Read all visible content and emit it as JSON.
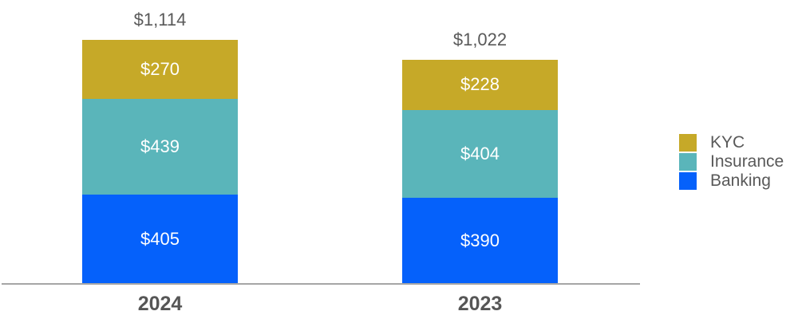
{
  "chart_data": {
    "type": "bar",
    "stacked": true,
    "title": "",
    "xlabel": "",
    "ylabel": "",
    "grid": false,
    "legend_position": "right",
    "value_prefix": "$",
    "categories": [
      "2024",
      "2023"
    ],
    "series": [
      {
        "name": "KYC",
        "color": "#c6a928",
        "values": [
          270,
          228
        ],
        "labels": [
          "$270",
          "$228"
        ]
      },
      {
        "name": "Insurance",
        "color": "#5ab5ba",
        "values": [
          439,
          404
        ],
        "labels": [
          "$439",
          "$404"
        ]
      },
      {
        "name": "Banking",
        "color": "#0561fb",
        "values": [
          405,
          390
        ],
        "labels": [
          "$405",
          "$390"
        ]
      }
    ],
    "totals": [
      1114,
      1022
    ],
    "total_labels": [
      "$1,114",
      "$1,022"
    ]
  },
  "colors": {
    "axis_line": "#a6a6a6",
    "label_gray": "#595959",
    "segment_text": "#ffffff",
    "background": "#ffffff"
  }
}
